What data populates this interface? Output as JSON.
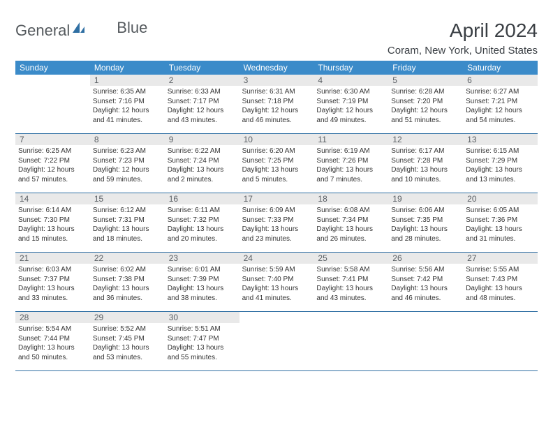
{
  "logo": {
    "word1": "General",
    "word2": "Blue"
  },
  "title": "April 2024",
  "location": "Coram, New York, United States",
  "colors": {
    "header_bg": "#3b8bc9",
    "header_text": "#ffffff",
    "daynum_bg": "#e9e9e9",
    "daynum_text": "#5a5f64",
    "border": "#2f6fa3",
    "text": "#333333",
    "title_text": "#3a3f44",
    "logo_text": "#555a5e",
    "logo_accent": "#2f6fa3"
  },
  "columns": [
    "Sunday",
    "Monday",
    "Tuesday",
    "Wednesday",
    "Thursday",
    "Friday",
    "Saturday"
  ],
  "weeks": [
    [
      {
        "blank": true
      },
      {
        "num": "1",
        "sunrise": "6:35 AM",
        "sunset": "7:16 PM",
        "daylight": "12 hours and 41 minutes."
      },
      {
        "num": "2",
        "sunrise": "6:33 AM",
        "sunset": "7:17 PM",
        "daylight": "12 hours and 43 minutes."
      },
      {
        "num": "3",
        "sunrise": "6:31 AM",
        "sunset": "7:18 PM",
        "daylight": "12 hours and 46 minutes."
      },
      {
        "num": "4",
        "sunrise": "6:30 AM",
        "sunset": "7:19 PM",
        "daylight": "12 hours and 49 minutes."
      },
      {
        "num": "5",
        "sunrise": "6:28 AM",
        "sunset": "7:20 PM",
        "daylight": "12 hours and 51 minutes."
      },
      {
        "num": "6",
        "sunrise": "6:27 AM",
        "sunset": "7:21 PM",
        "daylight": "12 hours and 54 minutes."
      }
    ],
    [
      {
        "num": "7",
        "sunrise": "6:25 AM",
        "sunset": "7:22 PM",
        "daylight": "12 hours and 57 minutes."
      },
      {
        "num": "8",
        "sunrise": "6:23 AM",
        "sunset": "7:23 PM",
        "daylight": "12 hours and 59 minutes."
      },
      {
        "num": "9",
        "sunrise": "6:22 AM",
        "sunset": "7:24 PM",
        "daylight": "13 hours and 2 minutes."
      },
      {
        "num": "10",
        "sunrise": "6:20 AM",
        "sunset": "7:25 PM",
        "daylight": "13 hours and 5 minutes."
      },
      {
        "num": "11",
        "sunrise": "6:19 AM",
        "sunset": "7:26 PM",
        "daylight": "13 hours and 7 minutes."
      },
      {
        "num": "12",
        "sunrise": "6:17 AM",
        "sunset": "7:28 PM",
        "daylight": "13 hours and 10 minutes."
      },
      {
        "num": "13",
        "sunrise": "6:15 AM",
        "sunset": "7:29 PM",
        "daylight": "13 hours and 13 minutes."
      }
    ],
    [
      {
        "num": "14",
        "sunrise": "6:14 AM",
        "sunset": "7:30 PM",
        "daylight": "13 hours and 15 minutes."
      },
      {
        "num": "15",
        "sunrise": "6:12 AM",
        "sunset": "7:31 PM",
        "daylight": "13 hours and 18 minutes."
      },
      {
        "num": "16",
        "sunrise": "6:11 AM",
        "sunset": "7:32 PM",
        "daylight": "13 hours and 20 minutes."
      },
      {
        "num": "17",
        "sunrise": "6:09 AM",
        "sunset": "7:33 PM",
        "daylight": "13 hours and 23 minutes."
      },
      {
        "num": "18",
        "sunrise": "6:08 AM",
        "sunset": "7:34 PM",
        "daylight": "13 hours and 26 minutes."
      },
      {
        "num": "19",
        "sunrise": "6:06 AM",
        "sunset": "7:35 PM",
        "daylight": "13 hours and 28 minutes."
      },
      {
        "num": "20",
        "sunrise": "6:05 AM",
        "sunset": "7:36 PM",
        "daylight": "13 hours and 31 minutes."
      }
    ],
    [
      {
        "num": "21",
        "sunrise": "6:03 AM",
        "sunset": "7:37 PM",
        "daylight": "13 hours and 33 minutes."
      },
      {
        "num": "22",
        "sunrise": "6:02 AM",
        "sunset": "7:38 PM",
        "daylight": "13 hours and 36 minutes."
      },
      {
        "num": "23",
        "sunrise": "6:01 AM",
        "sunset": "7:39 PM",
        "daylight": "13 hours and 38 minutes."
      },
      {
        "num": "24",
        "sunrise": "5:59 AM",
        "sunset": "7:40 PM",
        "daylight": "13 hours and 41 minutes."
      },
      {
        "num": "25",
        "sunrise": "5:58 AM",
        "sunset": "7:41 PM",
        "daylight": "13 hours and 43 minutes."
      },
      {
        "num": "26",
        "sunrise": "5:56 AM",
        "sunset": "7:42 PM",
        "daylight": "13 hours and 46 minutes."
      },
      {
        "num": "27",
        "sunrise": "5:55 AM",
        "sunset": "7:43 PM",
        "daylight": "13 hours and 48 minutes."
      }
    ],
    [
      {
        "num": "28",
        "sunrise": "5:54 AM",
        "sunset": "7:44 PM",
        "daylight": "13 hours and 50 minutes."
      },
      {
        "num": "29",
        "sunrise": "5:52 AM",
        "sunset": "7:45 PM",
        "daylight": "13 hours and 53 minutes."
      },
      {
        "num": "30",
        "sunrise": "5:51 AM",
        "sunset": "7:47 PM",
        "daylight": "13 hours and 55 minutes."
      },
      {
        "blank": true
      },
      {
        "blank": true
      },
      {
        "blank": true
      },
      {
        "blank": true
      }
    ]
  ],
  "labels": {
    "sunrise": "Sunrise:",
    "sunset": "Sunset:",
    "daylight": "Daylight:"
  }
}
